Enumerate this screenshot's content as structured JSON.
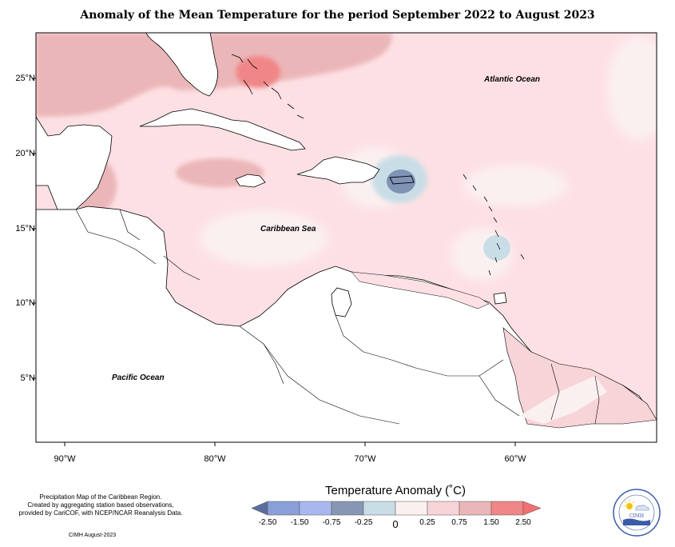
{
  "title": "Anomaly of the Mean Temperature for the period September 2022 to August 2023",
  "map": {
    "lat_labels": [
      "25°N",
      "20°N",
      "15°N",
      "10°N",
      "5°N"
    ],
    "lon_labels": [
      "90°W",
      "80°W",
      "70°W",
      "60°W"
    ],
    "ocean_labels": {
      "atlantic": "Atlantic Ocean",
      "caribbean": "Caribbean Sea",
      "pacific": "Pacific Ocean"
    },
    "colors": {
      "land_outline": "#000000",
      "anom_0_25": "#fde0e4",
      "anom_0_75": "#ebb6b8",
      "anom_1_50": "#f08686",
      "anom_neg_0_25": "#c9dde6",
      "anom_neg_0_75": "#7f93b6",
      "neutral": "#fbf0f0",
      "land": "#ffffff"
    }
  },
  "legend": {
    "title": "Temperature Anomaly (˚C)",
    "ticks": [
      "-2.50",
      "-1.50",
      "-0.75",
      "-0.25",
      "0",
      "0.25",
      "0.75",
      "1.50",
      "2.50"
    ],
    "colors": [
      "#5a6e9e",
      "#8a9fd8",
      "#a8b7ef",
      "#8797b3",
      "#c9dde6",
      "#fbf0f0",
      "#f7d4d8",
      "#ebb6b8",
      "#f08686",
      "#f36f72"
    ]
  },
  "footer": {
    "line1": "Precipitation Map of the Caribbean Region.",
    "line2": "Created by aggregating station based observations,",
    "line3": "provided by CariCOF, with NCEP/NCAR Reanalysis Data.",
    "credit": "CIMH August-2023"
  },
  "logo": {
    "text": "CIMH",
    "icon": "cimh-logo-icon"
  }
}
